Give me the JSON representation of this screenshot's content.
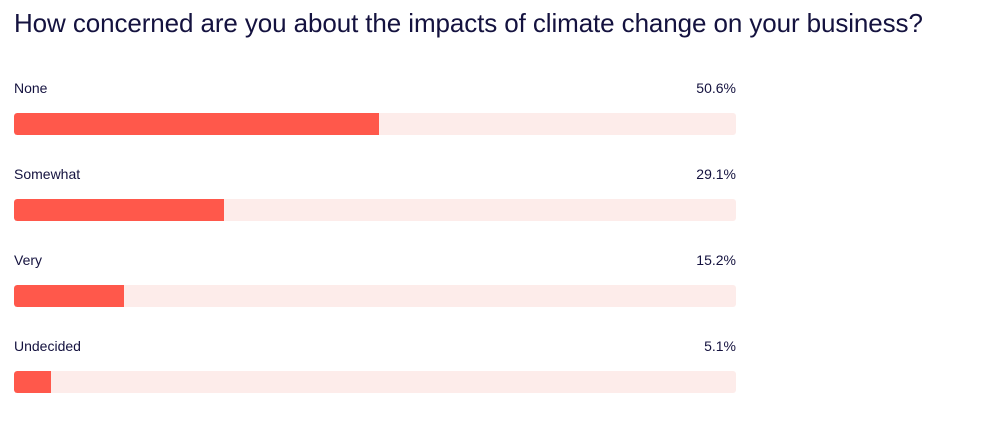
{
  "chart_data": {
    "type": "bar",
    "title": "How concerned are you about the impacts of climate change on your business?",
    "categories": [
      "None",
      "Somewhat",
      "Very",
      "Undecided"
    ],
    "values": [
      50.6,
      29.1,
      15.2,
      5.1
    ],
    "value_labels": [
      "50.6%",
      "29.1%",
      "15.2%",
      "5.1%"
    ],
    "orientation": "horizontal",
    "xlim": [
      0,
      100
    ],
    "grid": false,
    "colors": {
      "bar": "#ff584b",
      "track": "#fdecea",
      "text": "#14123f"
    }
  }
}
